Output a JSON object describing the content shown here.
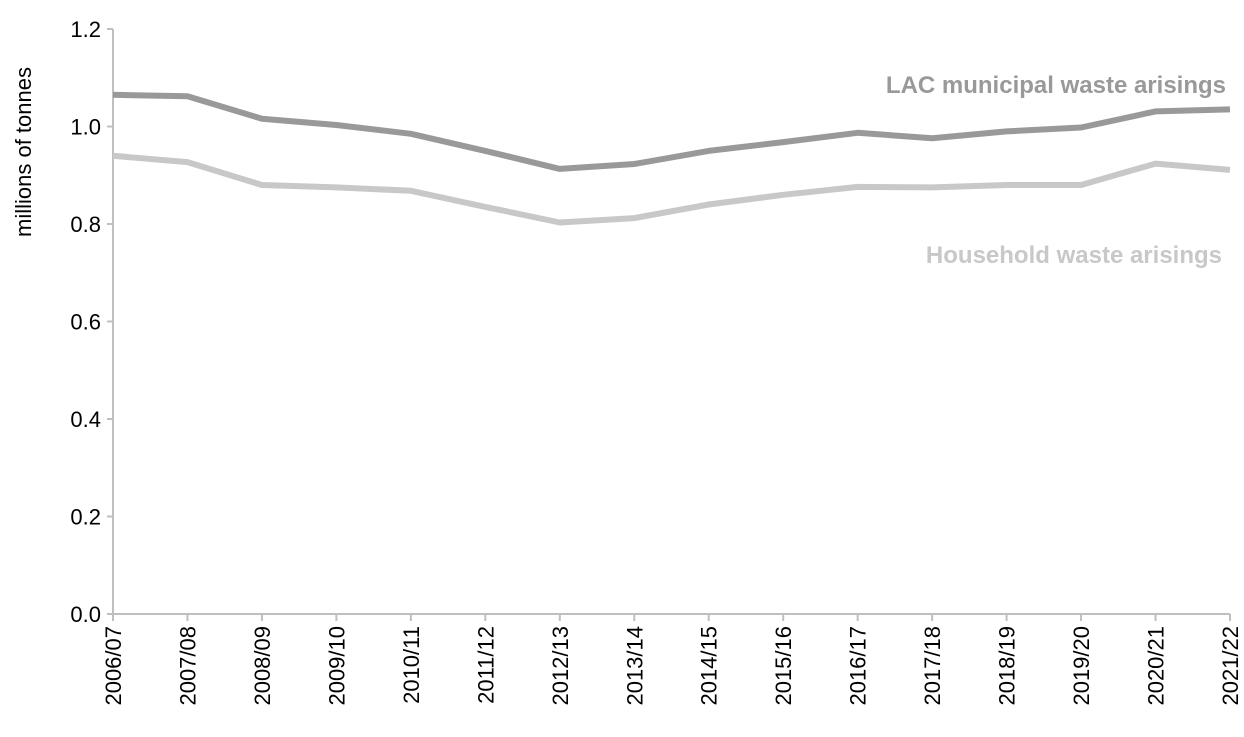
{
  "chart_data": {
    "type": "line",
    "categories": [
      "2006/07",
      "2007/08",
      "2008/09",
      "2009/10",
      "2010/11",
      "2011/12",
      "2012/13",
      "2013/14",
      "2014/15",
      "2015/16",
      "2016/17",
      "2017/18",
      "2018/19",
      "2019/20",
      "2020/21",
      "2021/22"
    ],
    "series": [
      {
        "name": "LAC municipal waste arisings",
        "color": "#999999",
        "values": [
          1.065,
          1.062,
          1.016,
          1.003,
          0.985,
          0.95,
          0.913,
          0.923,
          0.95,
          0.968,
          0.987,
          0.976,
          0.99,
          0.998,
          1.031,
          1.035
        ]
      },
      {
        "name": "Household waste arisings",
        "color": "#c8c8c8",
        "values": [
          0.94,
          0.927,
          0.88,
          0.875,
          0.868,
          0.835,
          0.803,
          0.812,
          0.84,
          0.86,
          0.876,
          0.875,
          0.88,
          0.88,
          0.924,
          0.911
        ]
      }
    ],
    "ylabel": "millions  of tonnes",
    "xlabel": "",
    "ylim": [
      0,
      1.2
    ],
    "yticks": [
      "0.0",
      "0.2",
      "0.4",
      "0.6",
      "0.8",
      "1.0",
      "1.2"
    ],
    "grid": false,
    "legend": "inline labels"
  }
}
